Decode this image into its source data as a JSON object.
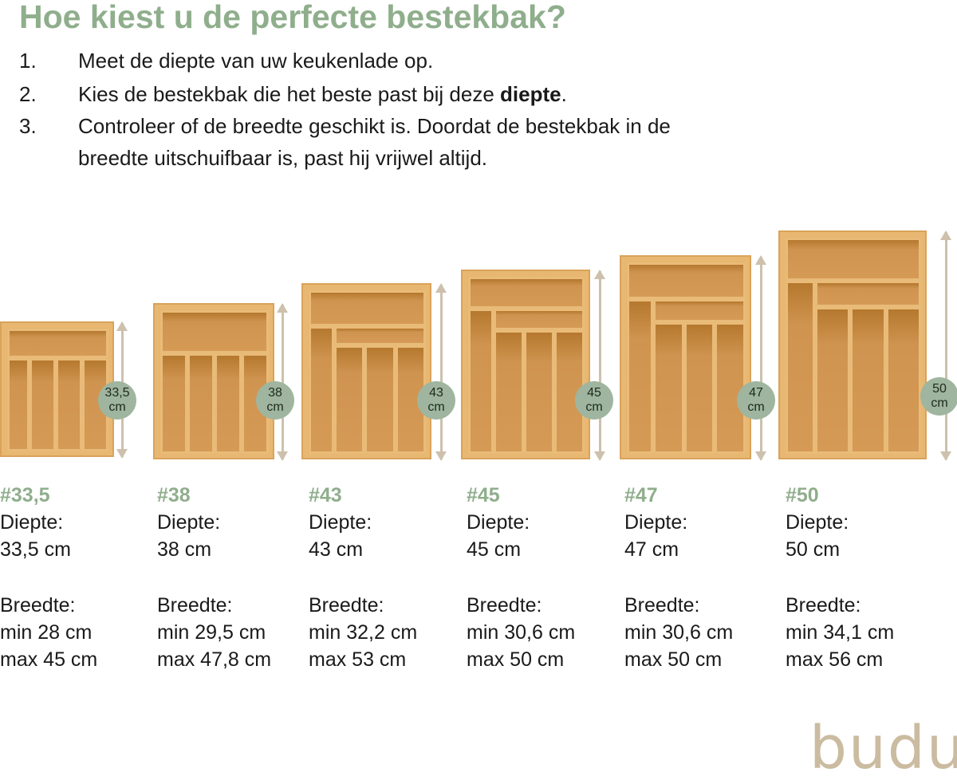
{
  "title": "Hoe kiest u de perfecte bestekbak?",
  "steps": [
    {
      "num": "1.",
      "text": "Meet de diepte van uw keukenlade op."
    },
    {
      "num": "2.",
      "text_before": "Kies de bestekbak die het beste past bij deze ",
      "text_bold": "diepte",
      "text_after": "."
    },
    {
      "num": "3.",
      "line1": "Controleer of de breedte geschikt is. Doordat de bestekbak in de",
      "line2": "breedte uitschuifbaar is, past hij vrijwel altijd."
    }
  ],
  "products": [
    {
      "badge_value": "33,5",
      "badge_unit": "cm",
      "code": "#33,5",
      "depth_label": "Diepte:",
      "depth": "33,5 cm",
      "width_label": "Breedte:",
      "min": "min 28 cm",
      "max": "max 45 cm"
    },
    {
      "badge_value": "38",
      "badge_unit": "cm",
      "code": "#38",
      "depth_label": "Diepte:",
      "depth": "38 cm",
      "width_label": "Breedte:",
      "min": "min 29,5 cm",
      "max": "max 47,8 cm"
    },
    {
      "badge_value": "43",
      "badge_unit": "cm",
      "code": "#43",
      "depth_label": "Diepte:",
      "depth": "43 cm",
      "width_label": "Breedte:",
      "min": "min 32,2 cm",
      "max": "max 53 cm"
    },
    {
      "badge_value": "45",
      "badge_unit": "cm",
      "code": "#45",
      "depth_label": "Diepte:",
      "depth": "45 cm",
      "width_label": "Breedte:",
      "min": "min 30,6 cm",
      "max": "max 50 cm"
    },
    {
      "badge_value": "47",
      "badge_unit": "cm",
      "code": "#47",
      "depth_label": "Diepte:",
      "depth": "47 cm",
      "width_label": "Breedte:",
      "min": "min 30,6 cm",
      "max": "max 50 cm"
    },
    {
      "badge_value": "50",
      "badge_unit": "cm",
      "code": "#50",
      "depth_label": "Diepte:",
      "depth": "50 cm",
      "width_label": "Breedte:",
      "min": "min 34,1 cm",
      "max": "max 56 cm"
    }
  ],
  "logo": "budu",
  "colors": {
    "accent_green": "#8fae8c",
    "badge": "#9fb59f",
    "logo": "#cbbba0",
    "bamboo": "#d59a55"
  }
}
